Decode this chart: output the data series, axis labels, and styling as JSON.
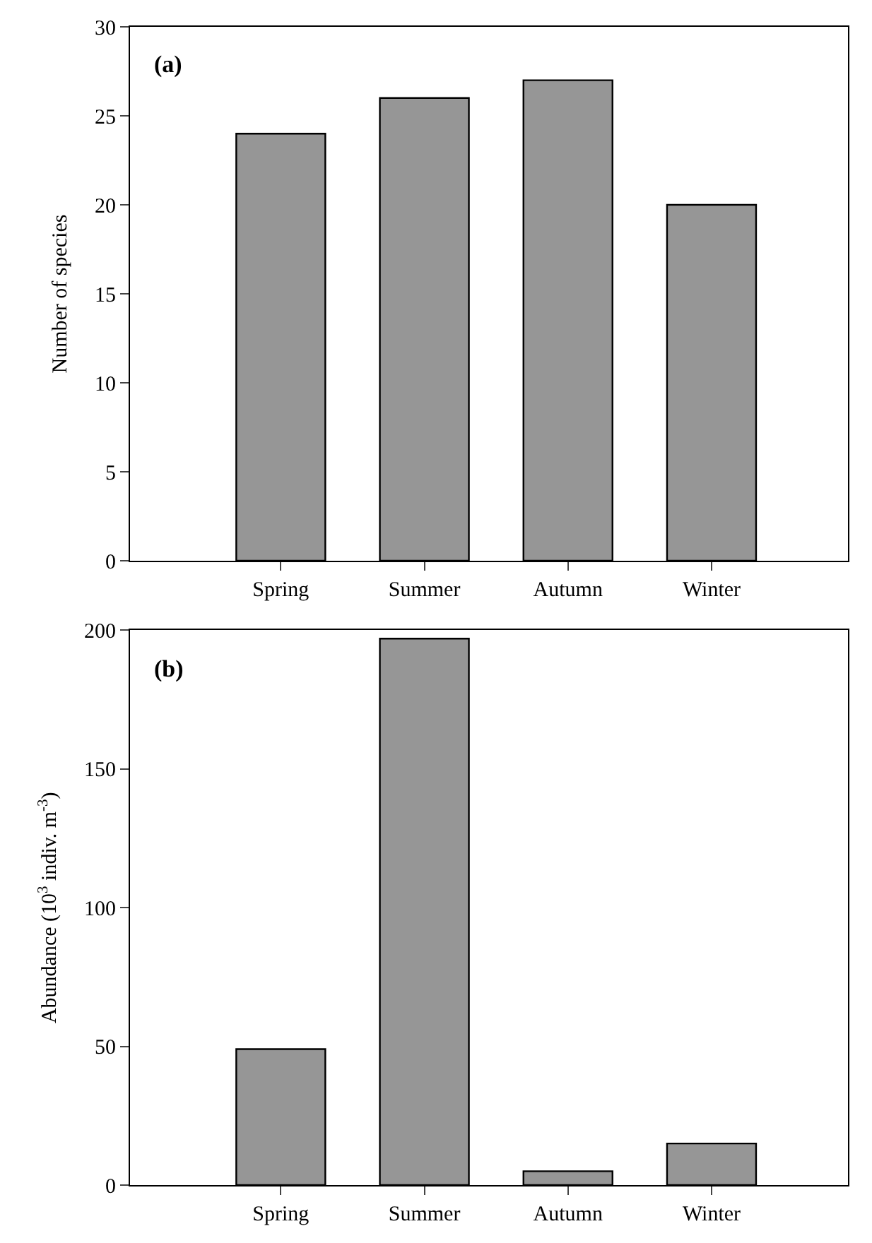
{
  "chart_data": [
    {
      "type": "bar",
      "categories": [
        "Spring",
        "Summer",
        "Autumn",
        "Winter"
      ],
      "values": [
        24,
        26,
        27,
        20
      ],
      "color": "#969696",
      "ylabel": "Number of species",
      "ylim": [
        0,
        30
      ],
      "yticks": [
        0,
        5,
        10,
        15,
        20,
        25,
        30
      ],
      "annotations": [
        "(a)"
      ]
    },
    {
      "type": "bar",
      "categories": [
        "Spring",
        "Summer",
        "Autumn",
        "Winter"
      ],
      "values": [
        49,
        197,
        5,
        15
      ],
      "color": "#969696",
      "ylabel": "Abundance (10$^{3}$ indiv. m$^{-3}$)",
      "ylim": [
        0,
        200
      ],
      "yticks": [
        0,
        50,
        100,
        150,
        200
      ],
      "annotations": [
        "(b)"
      ]
    }
  ]
}
